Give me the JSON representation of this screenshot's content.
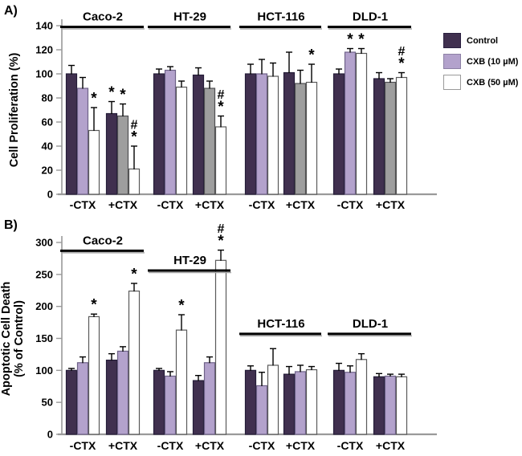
{
  "figure": {
    "panel_a_label": "A)",
    "panel_b_label": "B)"
  },
  "colors": {
    "control": "#40304f",
    "cxb10": "#b3a2cc",
    "gray": "#9e9e9e",
    "cxb50": "#ffffff",
    "axis": "#9a9a9a",
    "text": "#000000",
    "header_line": "#000000"
  },
  "legend": {
    "entries": [
      {
        "label": "Control",
        "color_key": "control"
      },
      {
        "label": "CXB (10 µM)",
        "color_key": "cxb10"
      },
      {
        "label": "CXB (50 µM)",
        "color_key": "cxb50"
      }
    ]
  },
  "chart_data": [
    {
      "panel": "A",
      "type": "bar",
      "ylabel_lines": [
        "Cell Proliferation (%)"
      ],
      "ylim": [
        0,
        140
      ],
      "ytick_step": 20,
      "grid": false,
      "legend_position": "right",
      "series": [
        "Control",
        "CXB (10 µM)",
        "CXB (50 µM)"
      ],
      "cell_lines": [
        {
          "name": "Caco-2",
          "header_value": 139,
          "groups": [
            {
              "label": "-CTX",
              "bars": [
                {
                  "series": "Control",
                  "value": 100,
                  "err": 7,
                  "sig": []
                },
                {
                  "series": "CXB (10 µM)",
                  "value": 88,
                  "err": 9,
                  "sig": []
                },
                {
                  "series": "CXB (50 µM)",
                  "value": 53,
                  "err": 19,
                  "sig": [
                    "*"
                  ]
                }
              ]
            },
            {
              "label": "+CTX",
              "bars": [
                {
                  "series": "Control",
                  "value": 67,
                  "err": 10,
                  "sig": [
                    "*"
                  ]
                },
                {
                  "series": "CXB (10 µM)",
                  "value": 65,
                  "err": 10,
                  "sig": [
                    "*"
                  ],
                  "fill": "gray"
                },
                {
                  "series": "CXB (50 µM)",
                  "value": 21,
                  "err": 19,
                  "sig": [
                    "*",
                    "#"
                  ]
                }
              ]
            }
          ]
        },
        {
          "name": "HT-29",
          "header_value": 139,
          "groups": [
            {
              "label": "-CTX",
              "bars": [
                {
                  "series": "Control",
                  "value": 100,
                  "err": 4,
                  "sig": []
                },
                {
                  "series": "CXB (10 µM)",
                  "value": 103,
                  "err": 3,
                  "sig": []
                },
                {
                  "series": "CXB (50 µM)",
                  "value": 89,
                  "err": 5,
                  "sig": []
                }
              ]
            },
            {
              "label": "+CTX",
              "bars": [
                {
                  "series": "Control",
                  "value": 99,
                  "err": 6,
                  "sig": []
                },
                {
                  "series": "CXB (10 µM)",
                  "value": 88,
                  "err": 6,
                  "sig": [],
                  "fill": "gray"
                },
                {
                  "series": "CXB (50 µM)",
                  "value": 56,
                  "err": 9,
                  "sig": [
                    "*",
                    "#"
                  ]
                }
              ]
            }
          ]
        },
        {
          "name": "HCT-116",
          "header_value": 139,
          "groups": [
            {
              "label": "-CTX",
              "bars": [
                {
                  "series": "Control",
                  "value": 100,
                  "err": 8,
                  "sig": []
                },
                {
                  "series": "CXB (10 µM)",
                  "value": 100,
                  "err": 12,
                  "sig": []
                },
                {
                  "series": "CXB (50 µM)",
                  "value": 98,
                  "err": 11,
                  "sig": []
                }
              ]
            },
            {
              "label": "+CTX",
              "bars": [
                {
                  "series": "Control",
                  "value": 101,
                  "err": 17,
                  "sig": []
                },
                {
                  "series": "CXB (10 µM)",
                  "value": 92,
                  "err": 11,
                  "sig": [],
                  "fill": "gray"
                },
                {
                  "series": "CXB (50 µM)",
                  "value": 93,
                  "err": 15,
                  "sig": [
                    "*"
                  ]
                }
              ]
            }
          ]
        },
        {
          "name": "DLD-1",
          "header_value": 139,
          "groups": [
            {
              "label": "-CTX",
              "bars": [
                {
                  "series": "Control",
                  "value": 100,
                  "err": 4,
                  "sig": []
                },
                {
                  "series": "CXB (10 µM)",
                  "value": 118,
                  "err": 3,
                  "sig": [
                    "*"
                  ]
                },
                {
                  "series": "CXB (50 µM)",
                  "value": 117,
                  "err": 4,
                  "sig": [
                    "*"
                  ]
                }
              ]
            },
            {
              "label": "+CTX",
              "bars": [
                {
                  "series": "Control",
                  "value": 96,
                  "err": 5,
                  "sig": []
                },
                {
                  "series": "CXB (10 µM)",
                  "value": 93,
                  "err": 3,
                  "sig": [],
                  "fill": "gray"
                },
                {
                  "series": "CXB (50 µM)",
                  "value": 97,
                  "err": 4,
                  "sig": [
                    "*",
                    "#"
                  ]
                }
              ]
            }
          ]
        }
      ]
    },
    {
      "panel": "B",
      "type": "bar",
      "ylabel_lines": [
        "Apoptotic Cell Death",
        "(% of Control)"
      ],
      "ylim": [
        0,
        300
      ],
      "ytick_step": 50,
      "grid": false,
      "series": [
        "Control",
        "CXB (10 µM)",
        "CXB (50 µM)"
      ],
      "cell_lines": [
        {
          "name": "Caco-2",
          "header_value": 287,
          "groups": [
            {
              "label": "-CTX",
              "bars": [
                {
                  "series": "Control",
                  "value": 100,
                  "err": 3,
                  "sig": []
                },
                {
                  "series": "CXB (10 µM)",
                  "value": 112,
                  "err": 9,
                  "sig": []
                },
                {
                  "series": "CXB (50 µM)",
                  "value": 184,
                  "err": 4,
                  "sig": [
                    "*"
                  ]
                }
              ]
            },
            {
              "label": "+CTX",
              "bars": [
                {
                  "series": "Control",
                  "value": 116,
                  "err": 10,
                  "sig": []
                },
                {
                  "series": "CXB (10 µM)",
                  "value": 130,
                  "err": 7,
                  "sig": []
                },
                {
                  "series": "CXB (50 µM)",
                  "value": 224,
                  "err": 12,
                  "sig": [
                    "*"
                  ]
                }
              ]
            }
          ]
        },
        {
          "name": "HT-29",
          "header_value": 256,
          "groups": [
            {
              "label": "-CTX",
              "bars": [
                {
                  "series": "Control",
                  "value": 100,
                  "err": 3,
                  "sig": []
                },
                {
                  "series": "CXB (10 µM)",
                  "value": 91,
                  "err": 7,
                  "sig": []
                },
                {
                  "series": "CXB (50 µM)",
                  "value": 163,
                  "err": 24,
                  "sig": [
                    "*"
                  ]
                }
              ]
            },
            {
              "label": "+CTX",
              "bars": [
                {
                  "series": "Control",
                  "value": 84,
                  "err": 8,
                  "sig": []
                },
                {
                  "series": "CXB (10 µM)",
                  "value": 112,
                  "err": 9,
                  "sig": []
                },
                {
                  "series": "CXB (50 µM)",
                  "value": 272,
                  "err": 16,
                  "sig": [
                    "*",
                    "#"
                  ]
                }
              ]
            }
          ]
        },
        {
          "name": "HCT-116",
          "header_value": 157,
          "groups": [
            {
              "label": "-CTX",
              "bars": [
                {
                  "series": "Control",
                  "value": 100,
                  "err": 7,
                  "sig": []
                },
                {
                  "series": "CXB (10 µM)",
                  "value": 76,
                  "err": 21,
                  "sig": []
                },
                {
                  "series": "CXB (50 µM)",
                  "value": 108,
                  "err": 26,
                  "sig": []
                }
              ]
            },
            {
              "label": "+CTX",
              "bars": [
                {
                  "series": "Control",
                  "value": 94,
                  "err": 12,
                  "sig": []
                },
                {
                  "series": "CXB (10 µM)",
                  "value": 98,
                  "err": 10,
                  "sig": []
                },
                {
                  "series": "CXB (50 µM)",
                  "value": 101,
                  "err": 5,
                  "sig": []
                }
              ]
            }
          ]
        },
        {
          "name": "DLD-1",
          "header_value": 157,
          "groups": [
            {
              "label": "-CTX",
              "bars": [
                {
                  "series": "Control",
                  "value": 100,
                  "err": 11,
                  "sig": []
                },
                {
                  "series": "CXB (10 µM)",
                  "value": 97,
                  "err": 10,
                  "sig": []
                },
                {
                  "series": "CXB (50 µM)",
                  "value": 117,
                  "err": 9,
                  "sig": []
                }
              ]
            },
            {
              "label": "+CTX",
              "bars": [
                {
                  "series": "Control",
                  "value": 90,
                  "err": 5,
                  "sig": []
                },
                {
                  "series": "CXB (10 µM)",
                  "value": 91,
                  "err": 3,
                  "sig": []
                },
                {
                  "series": "CXB (50 µM)",
                  "value": 90,
                  "err": 4,
                  "sig": []
                }
              ]
            }
          ]
        }
      ]
    }
  ]
}
